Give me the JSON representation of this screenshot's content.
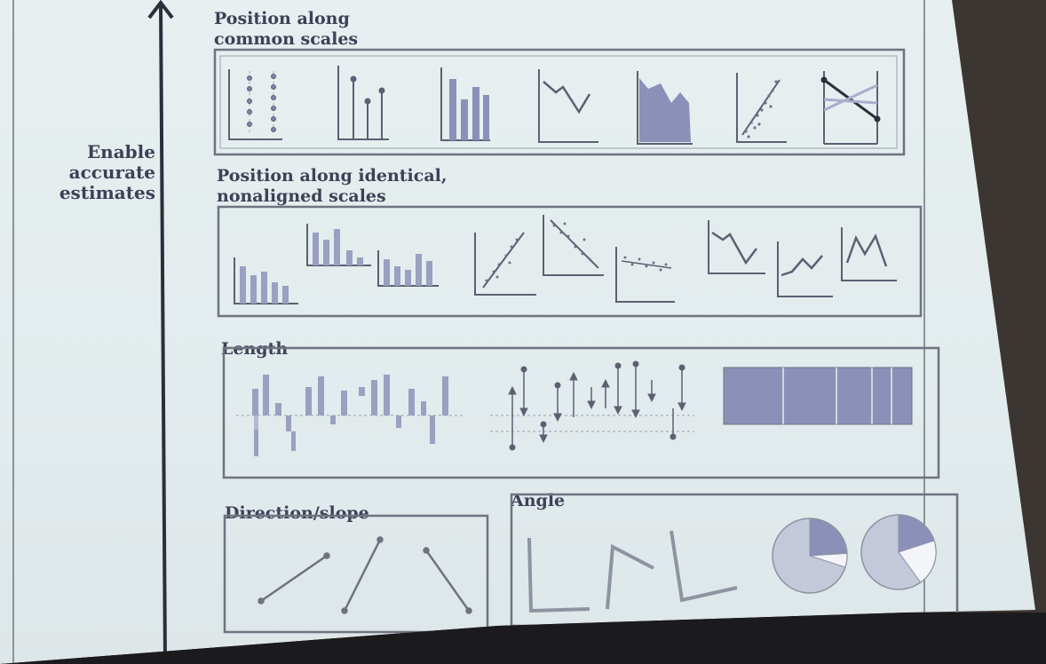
{
  "axis": {
    "label_lines": [
      "Enable",
      "accurate",
      "estimates"
    ]
  },
  "sections": [
    {
      "id": "common",
      "title_lines": [
        "Position along",
        "common scales"
      ]
    },
    {
      "id": "nonaligned",
      "title_lines": [
        "Position along identical,",
        "nonaligned scales"
      ]
    },
    {
      "id": "length",
      "title_lines": [
        "Length"
      ]
    },
    {
      "id": "direction",
      "title_lines": [
        "Direction/slope"
      ]
    },
    {
      "id": "angle",
      "title_lines": [
        "Angle"
      ]
    }
  ],
  "colors": {
    "ink": "#3d4156",
    "fill": "#8a90b8",
    "light_fill": "#c3c8db",
    "border": "#6f7380",
    "grid": "#c9cfd6",
    "background": "#e5edef"
  },
  "angle_pies": [
    {
      "dark_fraction": 0.24,
      "light_fraction": 0.06
    },
    {
      "dark_fraction": 0.2,
      "light_fraction": 0.2
    }
  ]
}
